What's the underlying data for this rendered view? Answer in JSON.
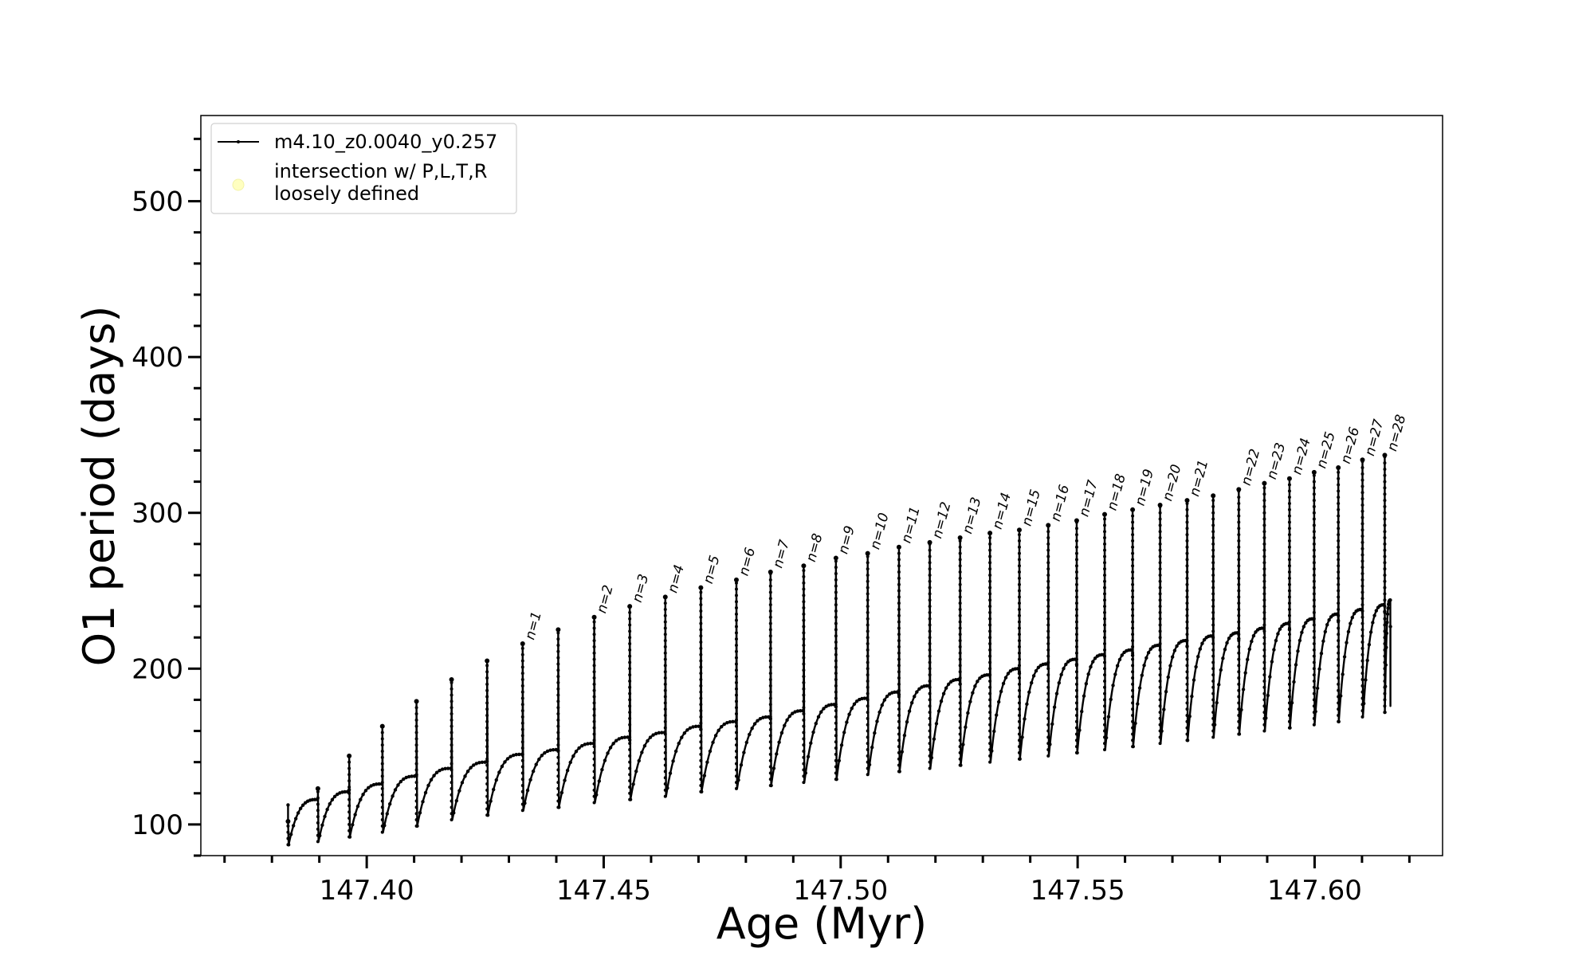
{
  "chart_data": {
    "type": "line",
    "title": "",
    "xlabel": "Age (Myr)",
    "ylabel": "O1 period (days)",
    "xlim": [
      147.365,
      147.627
    ],
    "ylim": [
      80,
      555
    ],
    "x_ticks": [
      {
        "value": 147.4,
        "label": "147.40"
      },
      {
        "value": 147.45,
        "label": "147.45"
      },
      {
        "value": 147.5,
        "label": "147.50"
      },
      {
        "value": 147.55,
        "label": "147.55"
      },
      {
        "value": 147.6,
        "label": "147.60"
      }
    ],
    "y_ticks": [
      {
        "value": 100,
        "label": "100"
      },
      {
        "value": 200,
        "label": "200"
      },
      {
        "value": 300,
        "label": "300"
      },
      {
        "value": 400,
        "label": "400"
      },
      {
        "value": 500,
        "label": "500"
      }
    ],
    "x_minor_step": 0.01,
    "y_minor_step": 20,
    "grid": false,
    "legend": {
      "placement": "top-left",
      "entries": [
        {
          "label": "m4.10_z0.0040_y0.257",
          "marker": "line-with-dots",
          "color": "#000000"
        },
        {
          "label_lines": [
            "intersection w/ P,L,T,R",
            "loosely defined"
          ],
          "marker": "circle",
          "color": "#ffffc0"
        }
      ]
    },
    "series": [
      {
        "name": "m4.10_z0.0040_y0.257",
        "color": "#000000",
        "pulses": [
          {
            "x": 147.3834,
            "min": 87,
            "plateau": 116,
            "peak": 102
          },
          {
            "x": 147.3897,
            "min": 89,
            "plateau": 121,
            "peak": 123
          },
          {
            "x": 147.3963,
            "min": 92,
            "plateau": 126,
            "peak": 144
          },
          {
            "x": 147.4033,
            "min": 95,
            "plateau": 131,
            "peak": 163
          },
          {
            "x": 147.4105,
            "min": 99,
            "plateau": 136,
            "peak": 179
          },
          {
            "x": 147.4179,
            "min": 103,
            "plateau": 140,
            "peak": 193
          },
          {
            "x": 147.4254,
            "min": 106,
            "plateau": 145,
            "peak": 205
          },
          {
            "x": 147.4329,
            "min": 109,
            "plateau": 148,
            "peak": 216,
            "label": "n=1"
          },
          {
            "x": 147.4404,
            "min": 111,
            "plateau": 152,
            "peak": 225
          },
          {
            "x": 147.448,
            "min": 114,
            "plateau": 156,
            "peak": 233,
            "label": "n=2"
          },
          {
            "x": 147.4555,
            "min": 116,
            "plateau": 159,
            "peak": 240,
            "label": "n=3"
          },
          {
            "x": 147.463,
            "min": 118,
            "plateau": 163,
            "peak": 246,
            "label": "n=4"
          },
          {
            "x": 147.4705,
            "min": 121,
            "plateau": 166,
            "peak": 252,
            "label": "n=5"
          },
          {
            "x": 147.478,
            "min": 123,
            "plateau": 169,
            "peak": 257,
            "label": "n=6"
          },
          {
            "x": 147.4852,
            "min": 125,
            "plateau": 173,
            "peak": 262,
            "label": "n=7"
          },
          {
            "x": 147.4922,
            "min": 127,
            "plateau": 177,
            "peak": 266,
            "label": "n=8"
          },
          {
            "x": 147.499,
            "min": 129,
            "plateau": 181,
            "peak": 271,
            "label": "n=9"
          },
          {
            "x": 147.5057,
            "min": 132,
            "plateau": 185,
            "peak": 274,
            "label": "n=10"
          },
          {
            "x": 147.5123,
            "min": 134,
            "plateau": 189,
            "peak": 278,
            "label": "n=11"
          },
          {
            "x": 147.5188,
            "min": 136,
            "plateau": 193,
            "peak": 281,
            "label": "n=12"
          },
          {
            "x": 147.5252,
            "min": 138,
            "plateau": 196,
            "peak": 284,
            "label": "n=13"
          },
          {
            "x": 147.5315,
            "min": 140,
            "plateau": 200,
            "peak": 287,
            "label": "n=14"
          },
          {
            "x": 147.5377,
            "min": 142,
            "plateau": 203,
            "peak": 289,
            "label": "n=15"
          },
          {
            "x": 147.5438,
            "min": 144,
            "plateau": 206,
            "peak": 292,
            "label": "n=16"
          },
          {
            "x": 147.5498,
            "min": 146,
            "plateau": 209,
            "peak": 295,
            "label": "n=17"
          },
          {
            "x": 147.5557,
            "min": 148,
            "plateau": 212,
            "peak": 299,
            "label": "n=18"
          },
          {
            "x": 147.5616,
            "min": 150,
            "plateau": 215,
            "peak": 302,
            "label": "n=19"
          },
          {
            "x": 147.5674,
            "min": 152,
            "plateau": 218,
            "peak": 305,
            "label": "n=20"
          },
          {
            "x": 147.5731,
            "min": 154,
            "plateau": 221,
            "peak": 308,
            "label": "n=21"
          },
          {
            "x": 147.5786,
            "min": 156,
            "plateau": 223,
            "peak": 311
          },
          {
            "x": 147.584,
            "min": 158,
            "plateau": 226,
            "peak": 315,
            "label": "n=22"
          },
          {
            "x": 147.5894,
            "min": 160,
            "plateau": 229,
            "peak": 319,
            "label": "n=23"
          },
          {
            "x": 147.5947,
            "min": 162,
            "plateau": 232,
            "peak": 322,
            "label": "n=24"
          },
          {
            "x": 147.5999,
            "min": 164,
            "plateau": 235,
            "peak": 326,
            "label": "n=25"
          },
          {
            "x": 147.605,
            "min": 166,
            "plateau": 238,
            "peak": 329,
            "label": "n=26"
          },
          {
            "x": 147.6101,
            "min": 169,
            "plateau": 241,
            "peak": 334,
            "label": "n=27"
          },
          {
            "x": 147.6148,
            "min": 172,
            "plateau": 244,
            "peak": 337,
            "label": "n=28"
          }
        ],
        "end": {
          "x": 147.616,
          "value": 227
        }
      }
    ]
  }
}
